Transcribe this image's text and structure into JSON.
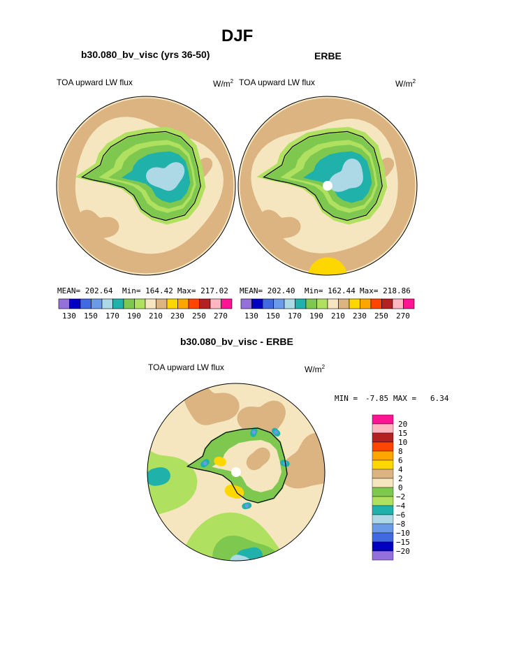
{
  "title": "DJF",
  "units_base": "W/m",
  "units_exp": "2",
  "variable": "TOA upward LW flux",
  "palette_abs": [
    "#9370db",
    "#0000c0",
    "#4169e1",
    "#6a9ae8",
    "#add8e6",
    "#20b2aa",
    "#7ec850",
    "#b0e060",
    "#f5e6c0",
    "#dcb482",
    "#ffd700",
    "#ffa500",
    "#ff4500",
    "#b22222",
    "#ffb6c1",
    "#ff1493"
  ],
  "palette_diff": [
    "#9370db",
    "#0000c0",
    "#4169e1",
    "#6a9ae8",
    "#add8e6",
    "#20b2aa",
    "#b0e060",
    "#7ec850",
    "#f5e6c0",
    "#dcb482",
    "#ffd700",
    "#ffa500",
    "#ff4500",
    "#b22222",
    "#ffb6c1",
    "#ff1493"
  ],
  "panels": [
    {
      "title": "b30.080_bv_visc (yrs 36-50)",
      "mean": "MEAN= 202.64",
      "min": "Min= 164.42",
      "max": "Max= 217.02"
    },
    {
      "title": "ERBE",
      "mean": "MEAN= 202.40",
      "min": "Min= 162.44",
      "max": "Max= 218.86"
    }
  ],
  "abs_tick_labels": [
    "130",
    "150",
    "170",
    "190",
    "210",
    "230",
    "250",
    "270"
  ],
  "diff": {
    "title": "b30.080_bv_visc - ERBE",
    "min_label": "MIN =",
    "min_value": "-7.85",
    "max_label": "MAX =",
    "max_value": "6.34"
  },
  "diff_tick_labels": [
    "20",
    "15",
    "10",
    "8",
    "6",
    "4",
    "2",
    "0",
    "−2",
    "−4",
    "−6",
    "−8",
    "−10",
    "−15",
    "−20"
  ],
  "chart_data": [
    {
      "type": "heatmap",
      "title": "b30.080_bv_visc (yrs 36-50)",
      "subtitle": "TOA upward LW flux",
      "units": "W/m2",
      "projection": "south polar stereographic",
      "mean": 202.64,
      "min": 164.42,
      "max": 217.02,
      "colorbar_levels": [
        130,
        140,
        150,
        160,
        170,
        180,
        190,
        200,
        210,
        220,
        230,
        240,
        250,
        260,
        270
      ],
      "dominant_values": {
        "ocean": 210,
        "sea_ice_ring": 200,
        "antarctic_coast": 190,
        "east_antarctic_plateau": 170,
        "dome": 165
      }
    },
    {
      "type": "heatmap",
      "title": "ERBE",
      "subtitle": "TOA upward LW flux",
      "units": "W/m2",
      "projection": "south polar stereographic",
      "mean": 202.4,
      "min": 162.44,
      "max": 218.86,
      "colorbar_levels": [
        130,
        140,
        150,
        160,
        170,
        180,
        190,
        200,
        210,
        220,
        230,
        240,
        250,
        260,
        270
      ],
      "dominant_values": {
        "ocean": 210,
        "sea_ice_ring": 200,
        "antarctic_coast": 190,
        "east_antarctic_plateau": 170,
        "dome": 165
      }
    },
    {
      "type": "heatmap",
      "title": "b30.080_bv_visc - ERBE",
      "subtitle": "TOA upward LW flux",
      "units": "W/m2",
      "projection": "south polar stereographic",
      "min": -7.85,
      "max": 6.34,
      "colorbar_levels": [
        -20,
        -15,
        -10,
        -8,
        -6,
        -4,
        -2,
        0,
        2,
        4,
        6,
        8,
        10,
        15,
        20
      ],
      "dominant_values": {
        "most_ocean": 1,
        "southern_ocean_band": -3,
        "antarctic_interior": -1,
        "local_maxima": 5,
        "local_minima": -7
      }
    }
  ]
}
